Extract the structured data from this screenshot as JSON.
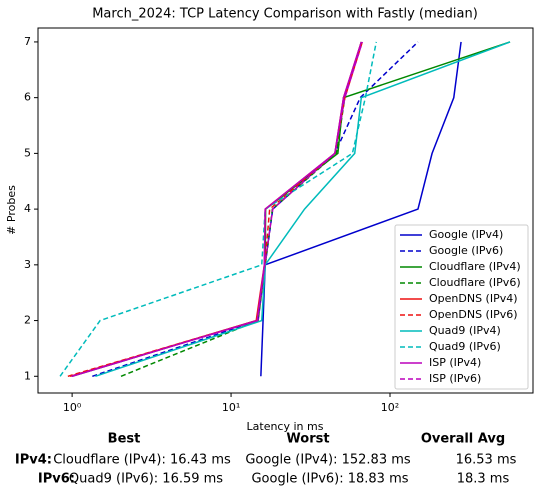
{
  "chart_data": {
    "type": "line",
    "title": "March_2024: TCP Latency Comparison with Fastly (median)",
    "xlabel": "Latency in ms",
    "ylabel": "# Probes",
    "xscale": "log",
    "xlim": [
      0.61,
      794
    ],
    "ylim": [
      0.7,
      7.25
    ],
    "xticks": [
      {
        "value": 1,
        "label": "10⁰"
      },
      {
        "value": 10,
        "label": "10¹"
      },
      {
        "value": 100,
        "label": "10²"
      }
    ],
    "yticks": [
      1,
      2,
      3,
      4,
      5,
      6,
      7
    ],
    "legend": "lower right",
    "series": [
      {
        "name": "Google (IPv4)",
        "color": "#0000cc",
        "dash": false,
        "x": [
          15.4,
          15.9,
          16.4,
          150,
          184,
          252,
          280
        ],
        "values": [
          1,
          2,
          3,
          4,
          5,
          6,
          7
        ]
      },
      {
        "name": "Google (IPv6)",
        "color": "#0000cc",
        "dash": true,
        "x": [
          1.34,
          14.8,
          16.4,
          18.3,
          45,
          65,
          150
        ],
        "values": [
          1,
          2,
          3,
          4,
          5,
          6,
          7
        ]
      },
      {
        "name": "Cloudflare (IPv4)",
        "color": "#008800",
        "dash": false,
        "x": [
          1.0,
          14.5,
          16.4,
          16.5,
          47,
          51,
          569
        ],
        "values": [
          1,
          2,
          3,
          4,
          5,
          6,
          7
        ]
      },
      {
        "name": "Cloudflare (IPv6)",
        "color": "#008800",
        "dash": true,
        "x": [
          2.03,
          14.8,
          16.4,
          18.2,
          46,
          52,
          66
        ],
        "values": [
          1,
          2,
          3,
          4,
          5,
          6,
          7
        ]
      },
      {
        "name": "OpenDNS (IPv4)",
        "color": "#ee1111",
        "dash": false,
        "x": [
          0.97,
          14.4,
          16.2,
          16.4,
          45,
          51,
          66
        ],
        "values": [
          1,
          2,
          3,
          4,
          5,
          6,
          7
        ]
      },
      {
        "name": "OpenDNS (IPv6)",
        "color": "#ee1111",
        "dash": true,
        "x": [
          0.94,
          14.6,
          16.3,
          17.5,
          45,
          52,
          67
        ],
        "values": [
          1,
          2,
          3,
          4,
          5,
          6,
          7
        ]
      },
      {
        "name": "Quad9 (IPv4)",
        "color": "#00bbbb",
        "dash": false,
        "x": [
          1.4,
          15.6,
          16.4,
          29,
          60,
          66,
          569
        ],
        "values": [
          1,
          2,
          3,
          4,
          5,
          6,
          7
        ]
      },
      {
        "name": "Quad9 (IPv6)",
        "color": "#00bbbb",
        "dash": true,
        "x": [
          0.84,
          1.5,
          15.6,
          16.4,
          58,
          70,
          82
        ],
        "values": [
          1,
          2,
          3,
          4,
          5,
          6,
          7
        ]
      },
      {
        "name": "ISP (IPv4)",
        "color": "#bb00bb",
        "dash": false,
        "x": [
          1.0,
          14.6,
          16.2,
          16.4,
          45,
          51,
          66
        ],
        "values": [
          1,
          2,
          3,
          4,
          5,
          6,
          7
        ]
      },
      {
        "name": "ISP (IPv6)",
        "color": "#bb00bb",
        "dash": true,
        "x": [
          0.99,
          14.7,
          16.3,
          18.3,
          45,
          52,
          67
        ],
        "values": [
          1,
          2,
          3,
          4,
          5,
          6,
          7
        ]
      }
    ]
  },
  "summary": {
    "headers": [
      "Best",
      "Worst",
      "Overall Avg"
    ],
    "rows": [
      [
        "IPv4:",
        "Cloudflare (IPv4): 16.43 ms",
        "Google (IPv4): 152.83 ms",
        "16.53 ms"
      ],
      [
        "IPv6:",
        "Quad9 (IPv6): 16.59 ms",
        "Google (IPv6): 18.83 ms",
        "18.3 ms"
      ]
    ]
  }
}
